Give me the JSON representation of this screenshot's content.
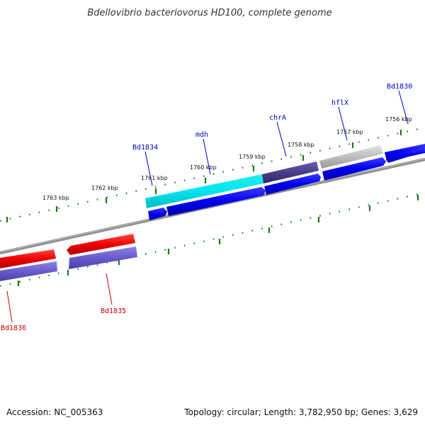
{
  "title": "Bdellovibrio bacteriovorus HD100, complete genome",
  "footer": {
    "accession": "Accession: NC_005363",
    "topology": "Topology: circular; Length: 3,782,950 bp; Genes: 3,629"
  },
  "kbp_labels": [
    "1763 kbp",
    "1762 kbp",
    "1761 kbp",
    "1760 kbp",
    "1759 kbp",
    "1758 kbp",
    "1757 kbp",
    "1756 kbp"
  ],
  "gene_labels": [
    {
      "text": "Bd1834",
      "strand": "forward"
    },
    {
      "text": "mdh",
      "strand": "forward"
    },
    {
      "text": "chrA",
      "strand": "forward"
    },
    {
      "text": "hflX",
      "strand": "forward"
    },
    {
      "text": "Bd1830",
      "strand": "forward"
    },
    {
      "text": "Bd1835",
      "strand": "reverse"
    },
    {
      "text": "Bd1836",
      "strand": "reverse"
    }
  ],
  "colors": {
    "forward_label": "#0000cc",
    "reverse_label": "#cc0000",
    "forward_gene": "#0000ee",
    "reverse_gene": "#ee0000",
    "cds_purple": "#6a5acd",
    "cyan_feature": "#00e5ee",
    "dark_feature": "#483d8b",
    "gray_feature": "#b8b8b8",
    "ticks": "#1a7a1a",
    "backbone": "#808080"
  }
}
